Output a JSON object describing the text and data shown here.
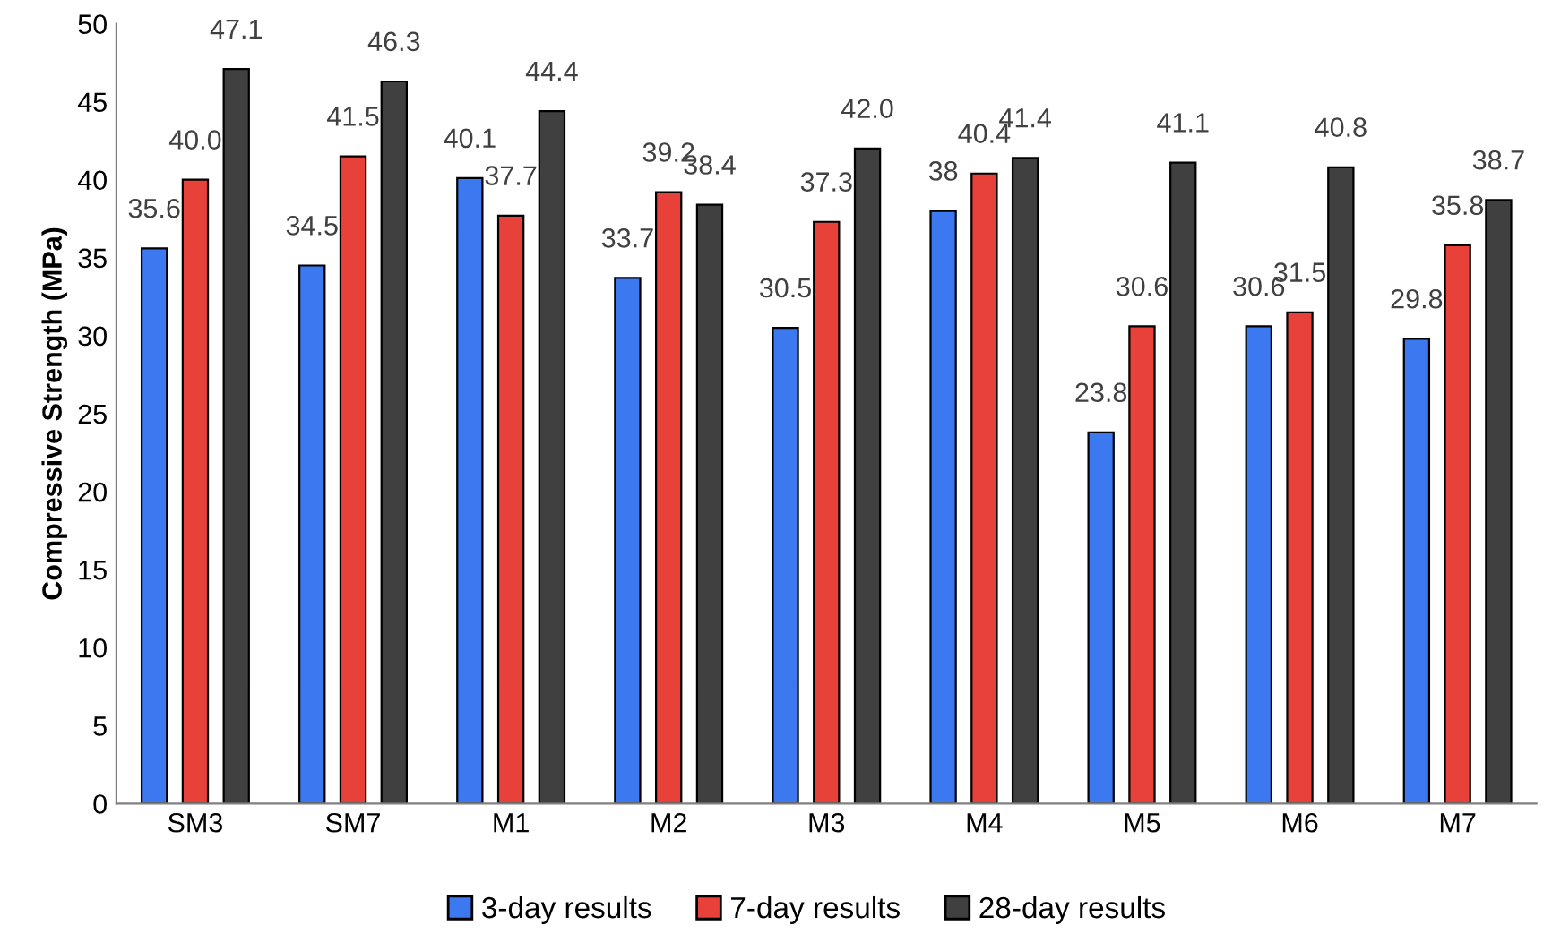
{
  "chart_data": {
    "type": "bar",
    "ylabel": "Compressive Strength (MPa)",
    "categories": [
      "SM3",
      "SM7",
      "M1",
      "M2",
      "M3",
      "M4",
      "M5",
      "M6",
      "M7"
    ],
    "series": [
      {
        "name": "3-day results",
        "color": "#3c78f0",
        "values": [
          35.6,
          34.5,
          40.1,
          33.7,
          30.5,
          38,
          23.8,
          30.6,
          29.8
        ],
        "value_labels": [
          "35.6",
          "34.5",
          "40.1",
          "33.7",
          "30.5",
          "38",
          "23.8",
          "30.6",
          "29.8"
        ]
      },
      {
        "name": "7-day results",
        "color": "#e8413a",
        "values": [
          40.0,
          41.5,
          37.7,
          39.2,
          37.3,
          40.4,
          30.6,
          31.5,
          35.8
        ],
        "value_labels": [
          "40.0",
          "41.5",
          "37.7",
          "39.2",
          "37.3",
          "40.4",
          "30.6",
          "31.5",
          "35.8"
        ]
      },
      {
        "name": "28-day results",
        "color": "#404040",
        "values": [
          47.1,
          46.3,
          44.4,
          38.4,
          42.0,
          41.4,
          41.1,
          40.8,
          38.7
        ],
        "value_labels": [
          "47.1",
          "46.3",
          "44.4",
          "38.4",
          "42.0",
          "41.4",
          "41.1",
          "40.8",
          "38.7"
        ]
      }
    ],
    "ylim": [
      0,
      50
    ],
    "yticks": [
      0,
      5,
      10,
      15,
      20,
      25,
      30,
      35,
      40,
      45,
      50
    ],
    "grid": false,
    "legend": "bottom"
  }
}
